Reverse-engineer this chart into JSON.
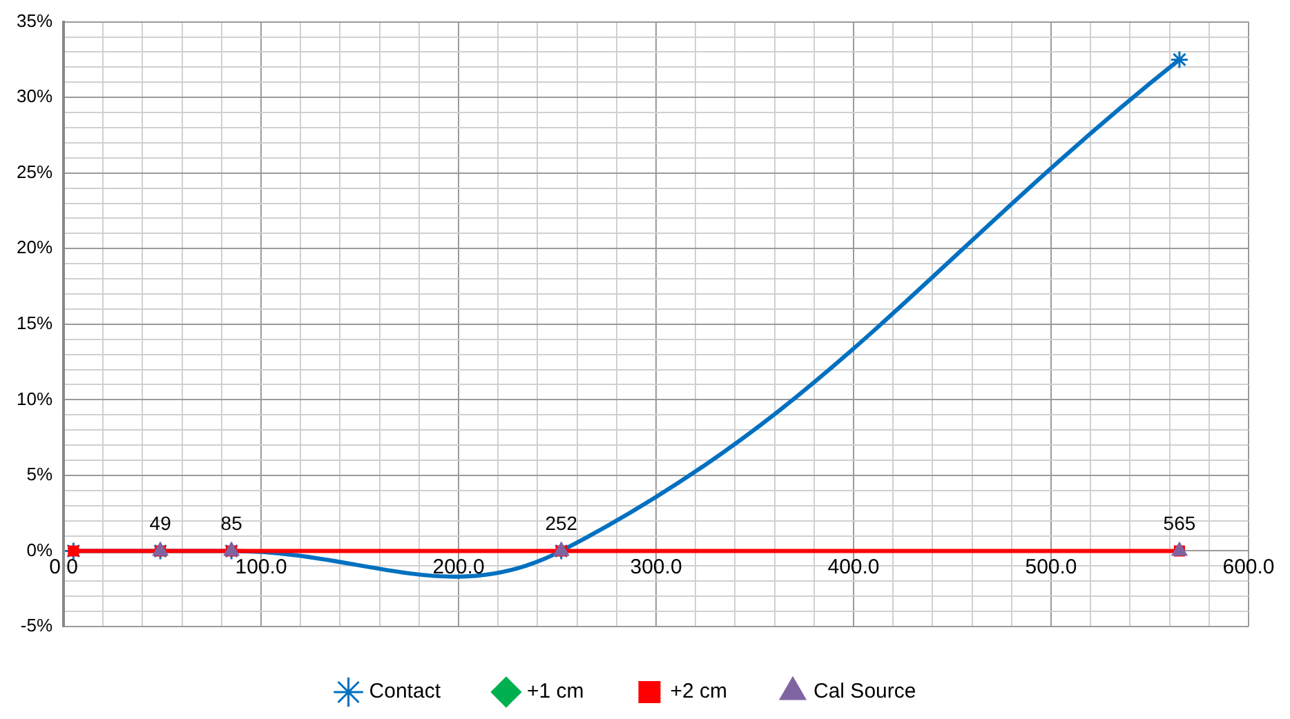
{
  "chart_data": {
    "type": "line",
    "x": [
      5,
      49,
      85,
      252,
      565
    ],
    "series": [
      {
        "name": "Contact",
        "color": "#0070c0",
        "marker": "cross",
        "values": [
          0,
          0,
          0,
          0,
          32.5
        ]
      },
      {
        "name": "+1 cm",
        "color": "#00b050",
        "marker": "diamond",
        "values": [
          null,
          null,
          null,
          null,
          null
        ]
      },
      {
        "name": "+2 cm",
        "color": "#ff0000",
        "marker": "square",
        "values": [
          0,
          0,
          0,
          0,
          0
        ]
      },
      {
        "name": "Cal Source",
        "type": "scatter",
        "color": "#8064a2",
        "marker": "triangle",
        "x": [
          49,
          85,
          252,
          565
        ],
        "values": [
          0,
          0,
          0,
          0
        ]
      }
    ],
    "annotations": [
      {
        "text": "49",
        "x": 49,
        "y": 0
      },
      {
        "text": "85",
        "x": 85,
        "y": 0
      },
      {
        "text": "252",
        "x": 252,
        "y": 0
      },
      {
        "text": "565",
        "x": 565,
        "y": 0
      }
    ],
    "xlim": [
      0,
      600
    ],
    "xticks": [
      {
        "value": 0,
        "label": "0.0"
      },
      {
        "value": 20,
        "label": null
      },
      {
        "value": 40,
        "label": null
      },
      {
        "value": 60,
        "label": null
      },
      {
        "value": 80,
        "label": null
      },
      {
        "value": 100,
        "label": "100.0"
      },
      {
        "value": 120,
        "label": null
      },
      {
        "value": 140,
        "label": null
      },
      {
        "value": 160,
        "label": null
      },
      {
        "value": 180,
        "label": null
      },
      {
        "value": 200,
        "label": "200.0"
      },
      {
        "value": 220,
        "label": null
      },
      {
        "value": 240,
        "label": null
      },
      {
        "value": 260,
        "label": null
      },
      {
        "value": 280,
        "label": null
      },
      {
        "value": 300,
        "label": "300.0"
      },
      {
        "value": 320,
        "label": null
      },
      {
        "value": 340,
        "label": null
      },
      {
        "value": 360,
        "label": null
      },
      {
        "value": 380,
        "label": null
      },
      {
        "value": 400,
        "label": "400.0"
      },
      {
        "value": 420,
        "label": null
      },
      {
        "value": 440,
        "label": null
      },
      {
        "value": 460,
        "label": null
      },
      {
        "value": 480,
        "label": null
      },
      {
        "value": 500,
        "label": "500.0"
      },
      {
        "value": 520,
        "label": null
      },
      {
        "value": 540,
        "label": null
      },
      {
        "value": 560,
        "label": null
      },
      {
        "value": 580,
        "label": null
      },
      {
        "value": 600,
        "label": "600.0"
      }
    ],
    "ylim": [
      -5,
      35
    ],
    "yticks": [
      {
        "value": -5,
        "label": "-5%"
      },
      {
        "value": -4,
        "label": null
      },
      {
        "value": -3,
        "label": null
      },
      {
        "value": -2,
        "label": null
      },
      {
        "value": -1,
        "label": null
      },
      {
        "value": 0,
        "label": "0%"
      },
      {
        "value": 1,
        "label": null
      },
      {
        "value": 2,
        "label": null
      },
      {
        "value": 3,
        "label": null
      },
      {
        "value": 4,
        "label": null
      },
      {
        "value": 5,
        "label": "5%"
      },
      {
        "value": 6,
        "label": null
      },
      {
        "value": 7,
        "label": null
      },
      {
        "value": 8,
        "label": null
      },
      {
        "value": 9,
        "label": null
      },
      {
        "value": 10,
        "label": "10%"
      },
      {
        "value": 11,
        "label": null
      },
      {
        "value": 12,
        "label": null
      },
      {
        "value": 13,
        "label": null
      },
      {
        "value": 14,
        "label": null
      },
      {
        "value": 15,
        "label": "15%"
      },
      {
        "value": 16,
        "label": null
      },
      {
        "value": 17,
        "label": null
      },
      {
        "value": 18,
        "label": null
      },
      {
        "value": 19,
        "label": null
      },
      {
        "value": 20,
        "label": "20%"
      },
      {
        "value": 21,
        "label": null
      },
      {
        "value": 22,
        "label": null
      },
      {
        "value": 23,
        "label": null
      },
      {
        "value": 24,
        "label": null
      },
      {
        "value": 25,
        "label": "25%"
      },
      {
        "value": 26,
        "label": null
      },
      {
        "value": 27,
        "label": null
      },
      {
        "value": 28,
        "label": null
      },
      {
        "value": 29,
        "label": null
      },
      {
        "value": 30,
        "label": "30%"
      },
      {
        "value": 31,
        "label": null
      },
      {
        "value": 32,
        "label": null
      },
      {
        "value": 33,
        "label": null
      },
      {
        "value": 34,
        "label": null
      },
      {
        "value": 35,
        "label": "35%"
      }
    ],
    "grid": true,
    "legend": "bottom",
    "line_style": "solid"
  }
}
